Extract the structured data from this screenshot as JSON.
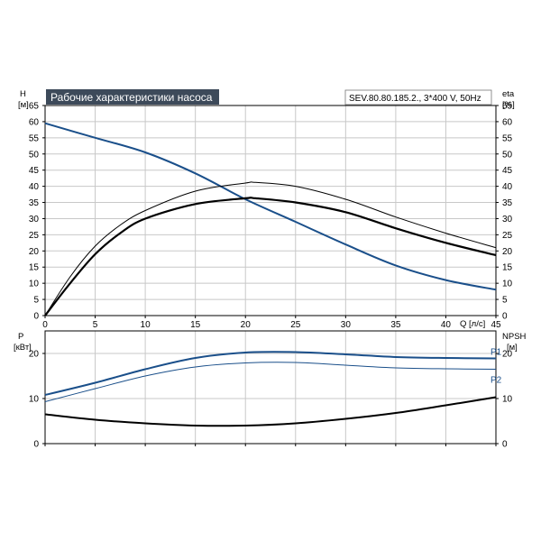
{
  "title": "Рабочие характеристики насоса",
  "subtitle": "SEV.80.80.185.2., 3*400 V, 50Hz",
  "colors": {
    "blue": "#1a4f8a",
    "black": "#000000",
    "grid": "#c8c8c8",
    "title_bg": "#3d4a5a"
  },
  "chart_data": [
    {
      "type": "line",
      "title": "Рабочие характеристики насоса",
      "subtitle": "SEV.80.80.185.2., 3*400 V, 50Hz",
      "ylabel_left": "H",
      "ylabel_left_unit": "[м]",
      "ylabel_right": "eta",
      "ylabel_right_unit": "[%]",
      "xlabel": "Q [л/с]",
      "xlim": [
        0,
        45
      ],
      "ylim": [
        0,
        65
      ],
      "xticks": [
        0,
        5,
        10,
        15,
        20,
        25,
        30,
        35,
        40,
        45
      ],
      "yticks": [
        0,
        5,
        10,
        15,
        20,
        25,
        30,
        35,
        40,
        45,
        50,
        55,
        60,
        65
      ],
      "grid": true,
      "series": [
        {
          "id": "head",
          "color": "#1a4f8a",
          "width": 2,
          "x": [
            0,
            5,
            10,
            15,
            20,
            25,
            30,
            35,
            40,
            45
          ],
          "y": [
            59.5,
            55,
            50.5,
            44,
            36,
            29,
            22,
            15.5,
            11,
            8
          ]
        },
        {
          "id": "eta-thin",
          "color": "#000000",
          "width": 1,
          "x": [
            0,
            2.5,
            5,
            7.5,
            10,
            15,
            20,
            21,
            25,
            30,
            35,
            40,
            45
          ],
          "y": [
            0,
            12,
            21.5,
            28,
            32.5,
            38.5,
            41,
            41.2,
            40,
            36,
            30.5,
            25.5,
            21
          ]
        },
        {
          "id": "eta-thick",
          "color": "#000000",
          "width": 2.2,
          "x": [
            0,
            2.5,
            5,
            7.5,
            10,
            15,
            20,
            21,
            25,
            30,
            35,
            40,
            45
          ],
          "y": [
            0,
            10,
            19,
            25.5,
            30,
            34.5,
            36.3,
            36.3,
            35,
            32,
            27,
            22.5,
            18.7
          ]
        }
      ]
    },
    {
      "type": "line",
      "ylabel_left": "P",
      "ylabel_left_unit": "[кВт]",
      "ylabel_right": "NPSH",
      "ylabel_right_unit": "[м]",
      "xlim": [
        0,
        45
      ],
      "ylim": [
        0,
        25
      ],
      "xticks": [
        0,
        5,
        10,
        15,
        20,
        25,
        30,
        35,
        40,
        45
      ],
      "yticks": [
        0,
        10,
        20
      ],
      "grid": true,
      "series": [
        {
          "id": "P1",
          "name": "P1",
          "color": "#1a4f8a",
          "width": 2,
          "x": [
            0,
            5,
            10,
            15,
            20,
            25,
            30,
            35,
            40,
            45
          ],
          "y": [
            10.8,
            13.5,
            16.5,
            19,
            20.2,
            20.3,
            19.8,
            19.2,
            19,
            18.9
          ]
        },
        {
          "id": "P2",
          "name": "P2",
          "color": "#1a4f8a",
          "width": 1,
          "x": [
            0,
            5,
            10,
            15,
            20,
            25,
            30,
            35,
            40,
            45
          ],
          "y": [
            9.3,
            12.2,
            15,
            17,
            17.9,
            18,
            17.4,
            16.8,
            16.6,
            16.5
          ]
        },
        {
          "id": "NPSH",
          "color": "#000000",
          "width": 2,
          "x": [
            0,
            5,
            10,
            15,
            20,
            25,
            30,
            35,
            40,
            45
          ],
          "y": [
            6.5,
            5.3,
            4.5,
            4,
            4,
            4.5,
            5.5,
            6.8,
            8.5,
            10.3
          ]
        }
      ]
    }
  ]
}
